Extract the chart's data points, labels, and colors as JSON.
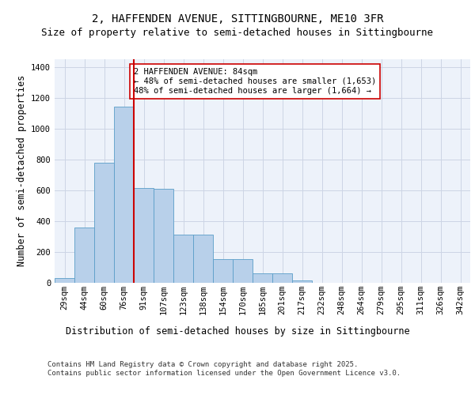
{
  "title_line1": "2, HAFFENDEN AVENUE, SITTINGBOURNE, ME10 3FR",
  "title_line2": "Size of property relative to semi-detached houses in Sittingbourne",
  "xlabel": "Distribution of semi-detached houses by size in Sittingbourne",
  "ylabel": "Number of semi-detached properties",
  "bar_labels": [
    "29sqm",
    "44sqm",
    "60sqm",
    "76sqm",
    "91sqm",
    "107sqm",
    "123sqm",
    "138sqm",
    "154sqm",
    "170sqm",
    "185sqm",
    "201sqm",
    "217sqm",
    "232sqm",
    "248sqm",
    "264sqm",
    "279sqm",
    "295sqm",
    "311sqm",
    "326sqm",
    "342sqm"
  ],
  "bar_values": [
    30,
    355,
    780,
    1140,
    615,
    610,
    310,
    310,
    150,
    150,
    60,
    60,
    15,
    0,
    0,
    0,
    0,
    0,
    0,
    0,
    0
  ],
  "bar_color": "#b8d0ea",
  "bar_edge_color": "#5a9ec8",
  "grid_color": "#ccd5e5",
  "background_color": "#edf2fa",
  "vline_color": "#cc0000",
  "annotation_text": "2 HAFFENDEN AVENUE: 84sqm\n← 48% of semi-detached houses are smaller (1,653)\n48% of semi-detached houses are larger (1,664) →",
  "annotation_box_color": "#ffffff",
  "annotation_box_edge": "#cc0000",
  "ylim": [
    0,
    1450
  ],
  "yticks": [
    0,
    200,
    400,
    600,
    800,
    1000,
    1200,
    1400
  ],
  "footer_text": "Contains HM Land Registry data © Crown copyright and database right 2025.\nContains public sector information licensed under the Open Government Licence v3.0.",
  "title_fontsize": 10,
  "subtitle_fontsize": 9,
  "axis_label_fontsize": 8.5,
  "tick_fontsize": 7.5,
  "annotation_fontsize": 7.5,
  "footer_fontsize": 6.5
}
